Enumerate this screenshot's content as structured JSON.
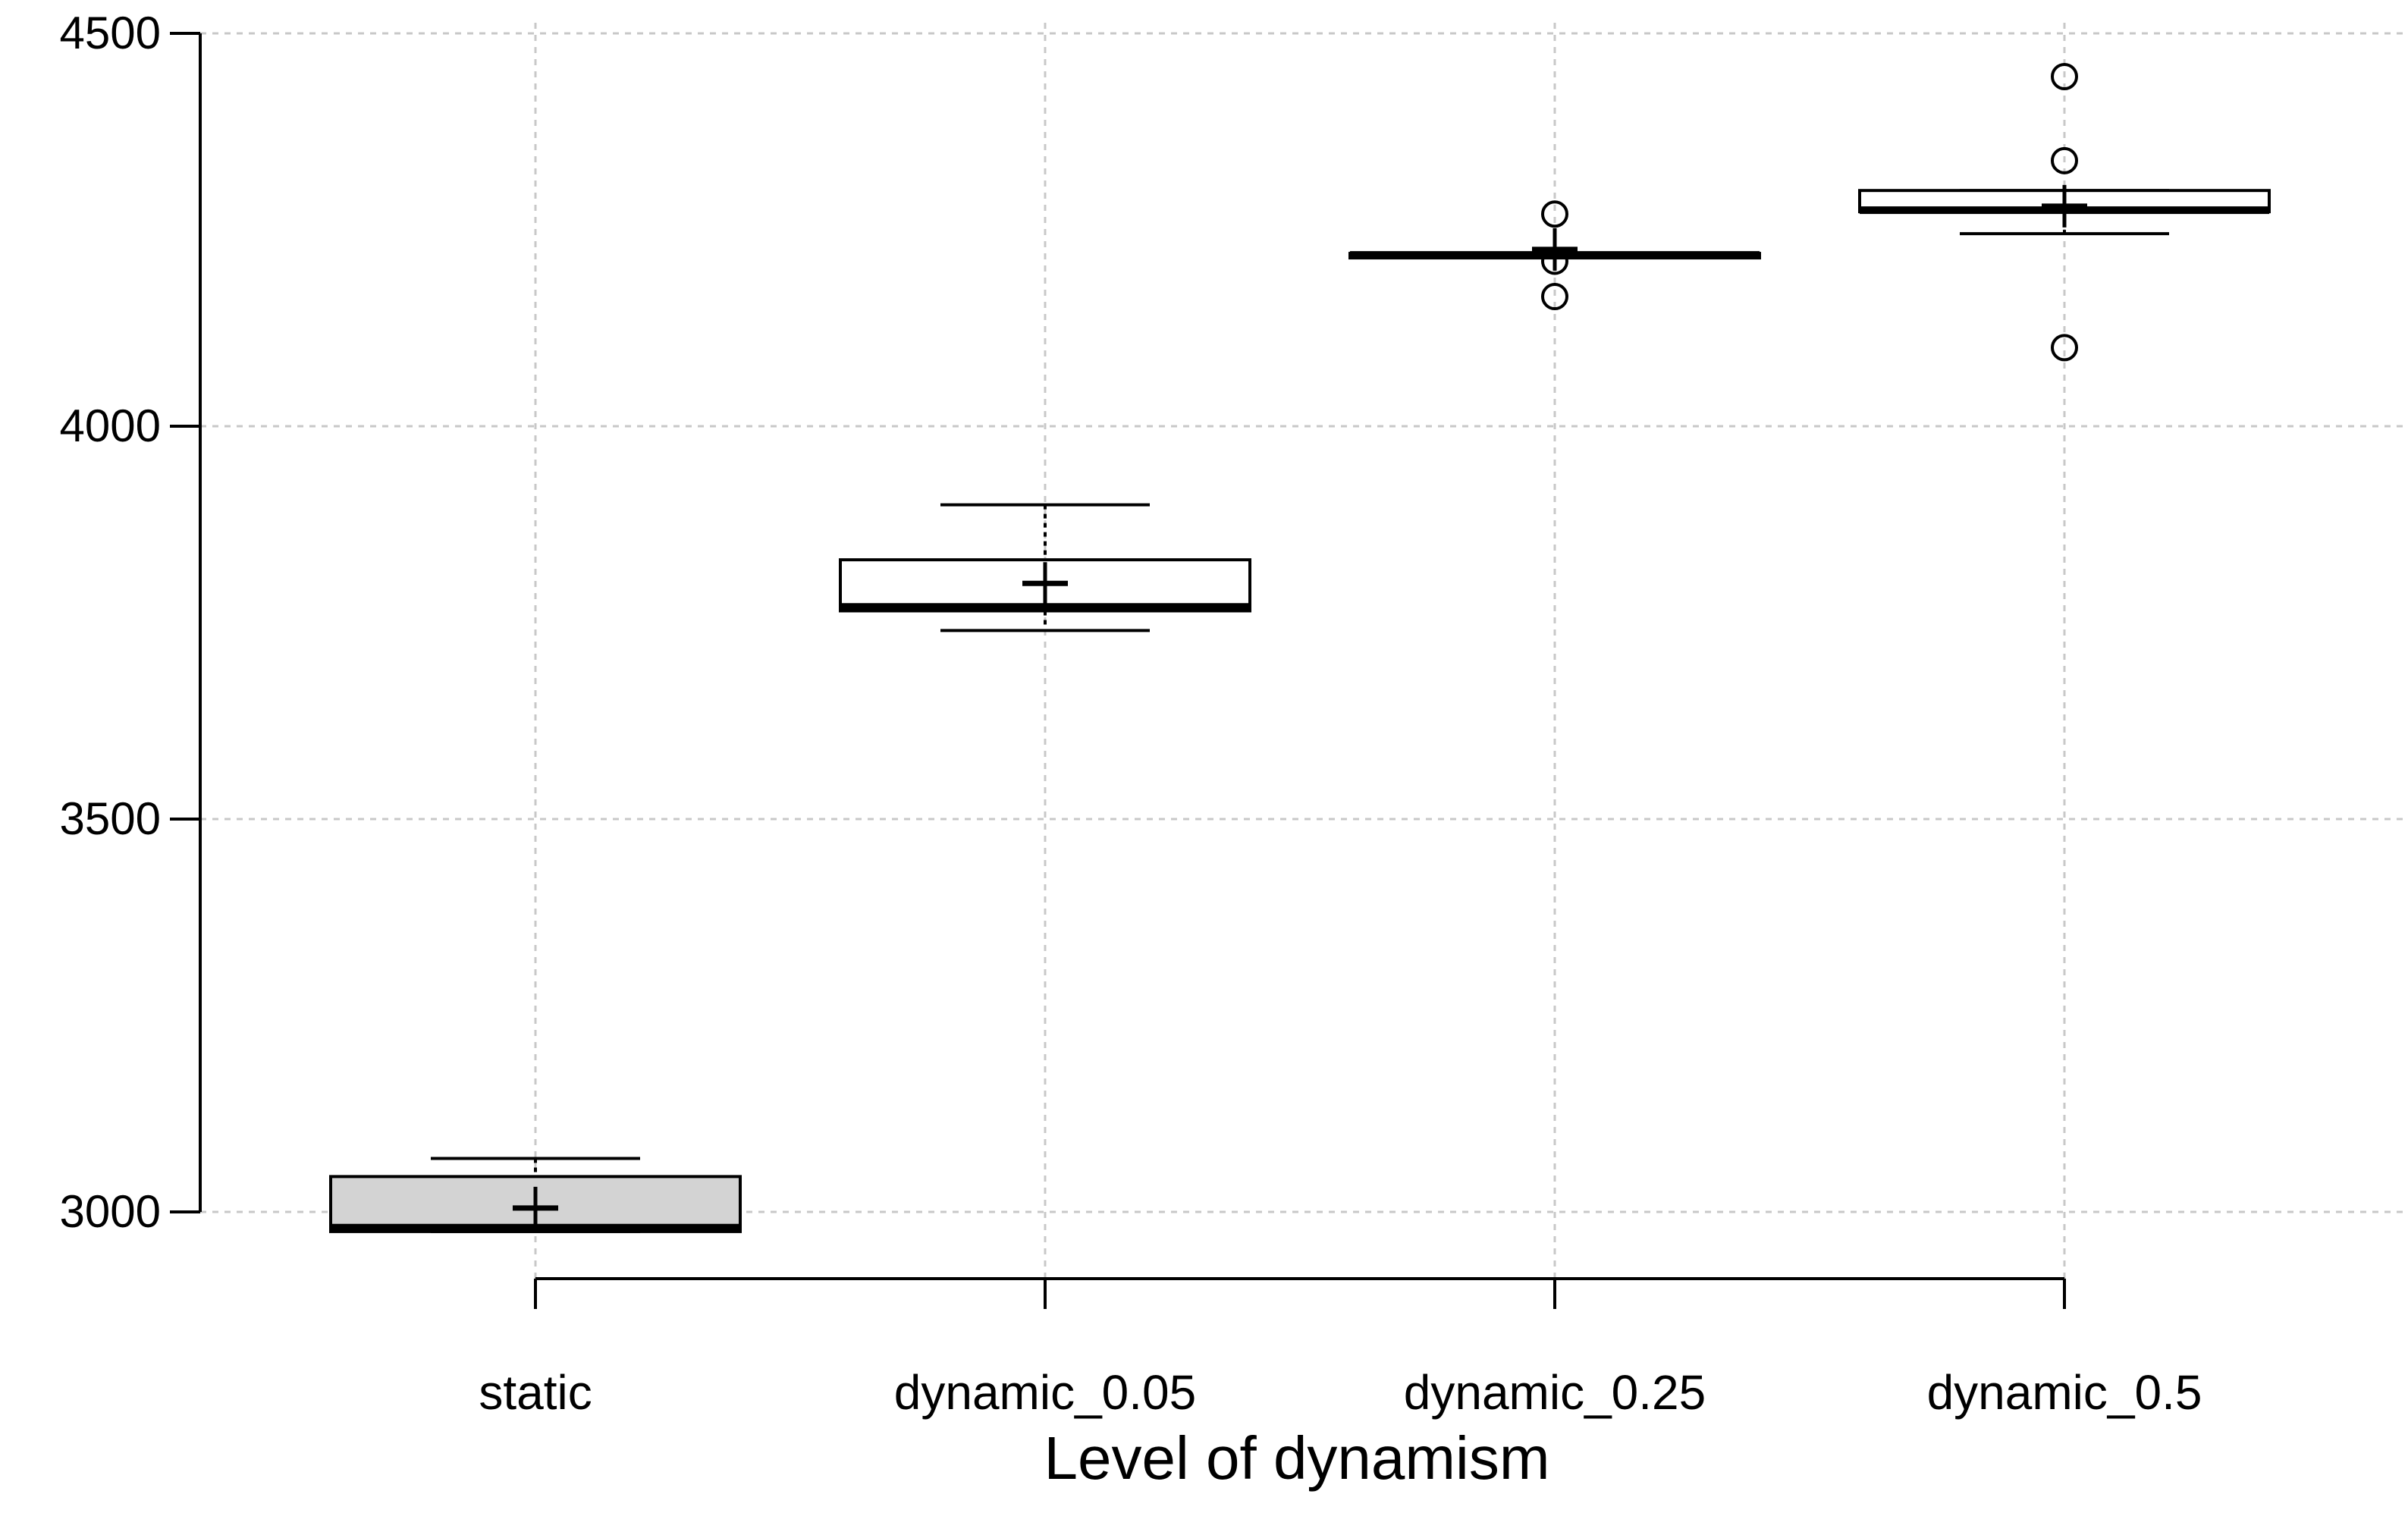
{
  "chart_data": {
    "type": "boxplot",
    "title": "",
    "xlabel": "Level of dynamism",
    "ylabel": "",
    "ylim": [
      2960,
      4500
    ],
    "yticks": [
      "3000",
      "3500",
      "4000",
      "4500"
    ],
    "grid": true,
    "categories": [
      "static",
      "dynamic_0.05",
      "dynamic_0.25",
      "dynamic_0.5"
    ],
    "boxes": [
      {
        "label": "static",
        "whisker_low": 2975,
        "q1": 2975,
        "median": 2980,
        "q3": 3045,
        "whisker_high": 3068,
        "mean": 3005,
        "outliers": [],
        "fill": "#d3d3d3"
      },
      {
        "label": "dynamic_0.05",
        "whisker_low": 3740,
        "q1": 3765,
        "median": 3770,
        "q3": 3830,
        "whisker_high": 3900,
        "mean": 3800,
        "outliers": [],
        "fill": "#ffffff"
      },
      {
        "label": "dynamic_0.25",
        "whisker_low": 4215,
        "q1": 4215,
        "median": 4218,
        "q3": 4220,
        "whisker_high": 4220,
        "mean": 4225,
        "outliers": [
          4270,
          4210,
          4165
        ],
        "fill": "#ffffff"
      },
      {
        "label": "dynamic_0.5",
        "whisker_low": 4245,
        "q1": 4273,
        "median": 4275,
        "q3": 4300,
        "whisker_high": 4300,
        "mean": 4280,
        "outliers": [
          4445,
          4338,
          4100
        ],
        "fill": "#ffffff"
      }
    ]
  }
}
